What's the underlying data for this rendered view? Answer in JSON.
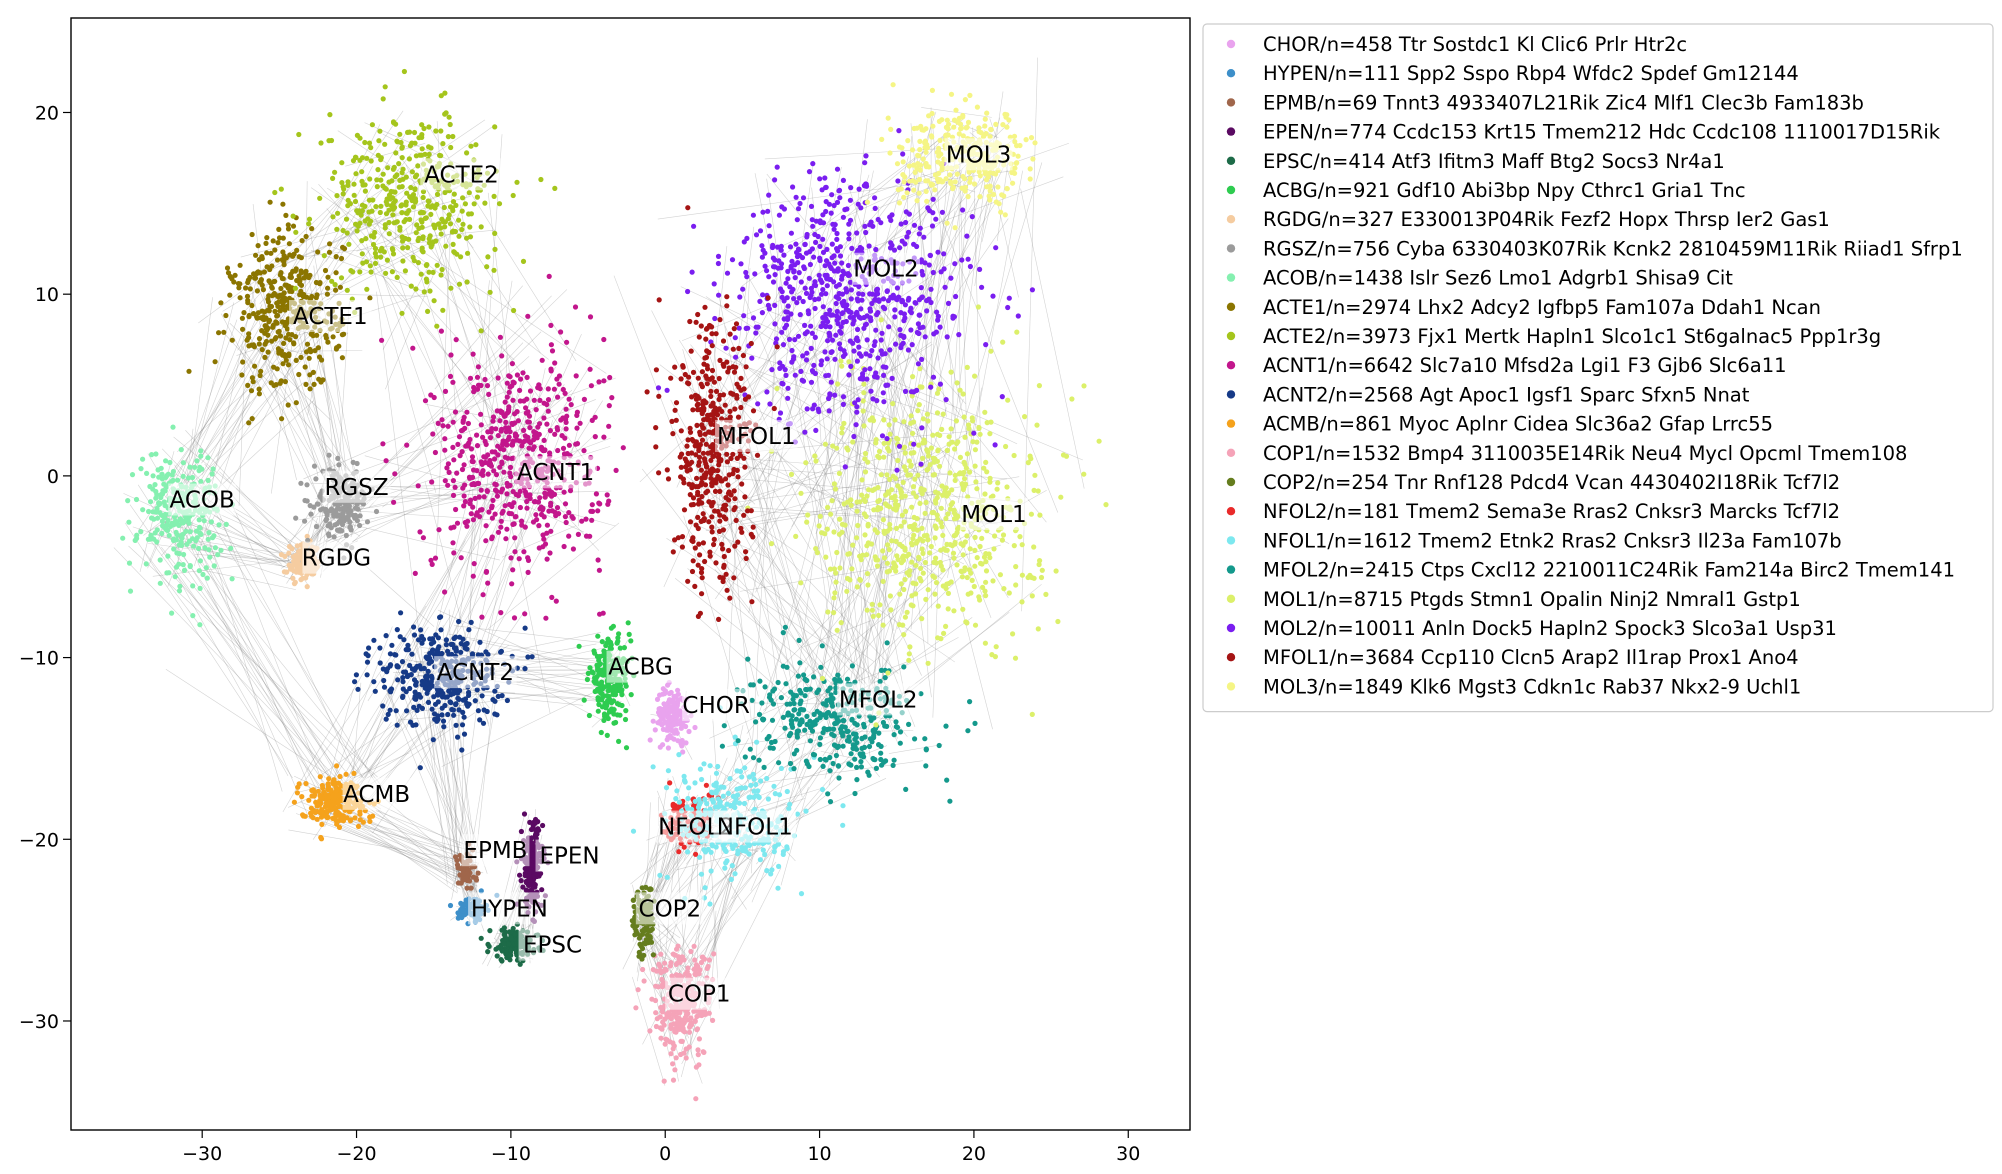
{
  "chart_data": {
    "type": "scatter",
    "title": "",
    "xlabel": "",
    "ylabel": "",
    "xlim": [
      -38.5,
      34
    ],
    "ylim": [
      -36,
      25.2
    ],
    "xticks": [
      -30,
      -20,
      -10,
      0,
      10,
      20,
      30
    ],
    "yticks": [
      20,
      10,
      0,
      -10,
      -20,
      -30
    ],
    "xtick_labels": [
      "−30",
      "−20",
      "−10",
      "0",
      "10",
      "20",
      "30"
    ],
    "ytick_labels": [
      "20",
      "10",
      "0",
      "−10",
      "−20",
      "−30"
    ],
    "grid": false,
    "legend_position": "outside-right-top",
    "edge_color": "#808080",
    "clusters": [
      {
        "name": "CHOR",
        "legend": "CHOR/n=458 Ttr Sostdc1 Kl Clic6 Prlr Htr2c",
        "color": "#e9a3ee",
        "n": 458,
        "center": [
          0.5,
          -13.2
        ],
        "spread": [
          1.0,
          1.4
        ],
        "label_pos": [
          3.3,
          -12.6
        ]
      },
      {
        "name": "HYPEN",
        "legend": "HYPEN/n=111 Spp2 Sspo Rbp4 Wfdc2 Spdef Gm12144",
        "color": "#3d8fc9",
        "n": 111,
        "center": [
          -12.5,
          -23.8
        ],
        "spread": [
          0.8,
          0.6
        ],
        "label_pos": [
          -10.1,
          -23.8
        ]
      },
      {
        "name": "EPMB",
        "legend": "EPMB/n=69 Tnnt3 4933407L21Rik Zic4 Mlf1 Clec3b Fam183b",
        "color": "#a0664b",
        "n": 69,
        "center": [
          -13,
          -21.8
        ],
        "spread": [
          0.7,
          1.0
        ],
        "label_pos": [
          -11,
          -20.6
        ]
      },
      {
        "name": "EPEN",
        "legend": "EPEN/n=774 Ccdc153 Krt15 Tmem212 Hdc Ccdc108 1110017D15Rik",
        "color": "#5a0a62",
        "n": 774,
        "center": [
          -8.6,
          -21.5
        ],
        "spread": [
          0.6,
          2.2
        ],
        "label_pos": [
          -6.2,
          -20.9
        ]
      },
      {
        "name": "EPSC",
        "legend": "EPSC/n=414 Atf3 Ifitm3 Maff Btg2 Socs3 Nr4a1",
        "color": "#1d6b48",
        "n": 414,
        "center": [
          -9.8,
          -25.8
        ],
        "spread": [
          1.4,
          0.8
        ],
        "label_pos": [
          -7.3,
          -25.8
        ]
      },
      {
        "name": "ACBG",
        "legend": "ACBG/n=921 Gdf10 Abi3bp Npy Cthrc1 Gria1 Tnc",
        "color": "#2ecc50",
        "n": 921,
        "center": [
          -3.6,
          -11.2
        ],
        "spread": [
          1.2,
          2.0
        ],
        "label_pos": [
          -1.6,
          -10.5
        ]
      },
      {
        "name": "RGDG",
        "legend": "RGDG/n=327 E330013P04Rik Fezf2 Hopx Thrsp Ier2 Gas1",
        "color": "#f5cca0",
        "n": 327,
        "center": [
          -23.4,
          -4.8
        ],
        "spread": [
          1.0,
          0.9
        ],
        "label_pos": [
          -21.3,
          -4.5
        ]
      },
      {
        "name": "RGSZ",
        "legend": "RGSZ/n=756 Cyba 6330403K07Rik Kcnk2 2810459M11Rik Riiad1 Sfrp1",
        "color": "#9b9b9b",
        "n": 756,
        "center": [
          -21,
          -1.5
        ],
        "spread": [
          1.6,
          1.6
        ],
        "label_pos": [
          -20,
          -0.6
        ]
      },
      {
        "name": "ACOB",
        "legend": "ACOB/n=1438 Islr Sez6 Lmo1 Adgrb1 Shisa9 Cit",
        "color": "#85f0b0",
        "n": 1438,
        "center": [
          -31.5,
          -2.0
        ],
        "spread": [
          2.4,
          3.2
        ],
        "label_pos": [
          -30,
          -1.3
        ]
      },
      {
        "name": "ACTE1",
        "legend": "ACTE1/n=2974 Lhx2 Adcy2 Igfbp5 Fam107a Ddah1 Ncan",
        "color": "#8b7500",
        "n": 2974,
        "center": [
          -24.5,
          9.0
        ],
        "spread": [
          3.2,
          4.0
        ],
        "label_pos": [
          -21.7,
          8.8
        ]
      },
      {
        "name": "ACTE2",
        "legend": "ACTE2/n=3973 Fjx1 Mertk Hapln1 Slco1c1 St6galnac5 Ppp1r3g",
        "color": "#a5c51c",
        "n": 3973,
        "center": [
          -16.5,
          15.0
        ],
        "spread": [
          5.2,
          4.3
        ],
        "label_pos": [
          -13.2,
          16.6
        ]
      },
      {
        "name": "ACNT1",
        "legend": "ACNT1/n=6642 Slc7a10 Mfsd2a Lgi1 F3 Gjb6 Slc6a11",
        "color": "#c2168c",
        "n": 6642,
        "center": [
          -9.5,
          0.8
        ],
        "spread": [
          5.0,
          5.6
        ],
        "label_pos": [
          -7.1,
          0.2
        ]
      },
      {
        "name": "ACNT2",
        "legend": "ACNT2/n=2568 Agt Apoc1 Igsf1 Sparc Sfxn5 Nnat",
        "color": "#163a87",
        "n": 2568,
        "center": [
          -14.5,
          -11.0
        ],
        "spread": [
          3.6,
          2.6
        ],
        "label_pos": [
          -12.3,
          -10.8
        ]
      },
      {
        "name": "ACMB",
        "legend": "ACMB/n=861 Myoc Aplnr Cidea Slc36a2 Gfap Lrrc55",
        "color": "#f5a21c",
        "n": 861,
        "center": [
          -21.5,
          -17.9
        ],
        "spread": [
          2.0,
          1.2
        ],
        "label_pos": [
          -18.7,
          -17.5
        ]
      },
      {
        "name": "COP1",
        "legend": "COP1/n=1532 Bmp4 3110035E14Rik Neu4 Mycl Opcml Tmem108",
        "color": "#f5a3b8",
        "n": 1532,
        "center": [
          1.0,
          -29.0
        ],
        "spread": [
          1.8,
          2.8
        ],
        "label_pos": [
          2.2,
          -28.5
        ]
      },
      {
        "name": "COP2",
        "legend": "COP2/n=254 Tnr Rnf128 Pdcd4 Vcan 4430402I18Rik Tcf7l2",
        "color": "#657d1e",
        "n": 254,
        "center": [
          -1.4,
          -24.5
        ],
        "spread": [
          0.6,
          1.8
        ],
        "label_pos": [
          0.3,
          -23.8
        ]
      },
      {
        "name": "NFOL2",
        "legend": "NFOL2/n=181 Tmem2 Sema3e Rras2 Cnksr3 Marcks Tcf7l2",
        "color": "#e92a2a",
        "n": 181,
        "center": [
          1.5,
          -19.0
        ],
        "spread": [
          1.5,
          1.5
        ],
        "label_pos": [
          2.0,
          -19.3
        ]
      },
      {
        "name": "NFOL1",
        "legend": "NFOL1/n=1612 Tmem2 Etnk2 Rras2 Cnksr3 Il23a Fam107b",
        "color": "#7de8ef",
        "n": 1612,
        "center": [
          4.5,
          -19.0
        ],
        "spread": [
          4.0,
          3.0
        ],
        "label_pos": [
          5.8,
          -19.3
        ]
      },
      {
        "name": "MFOL2",
        "legend": "MFOL2/n=2415 Ctps Cxcl12 2210011C24Rik Fam214a Birc2 Tmem141",
        "color": "#14998c",
        "n": 2415,
        "center": [
          11.0,
          -13.5
        ],
        "spread": [
          5.0,
          2.8
        ],
        "label_pos": [
          13.8,
          -12.3
        ]
      },
      {
        "name": "MOL1",
        "legend": "MOL1/n=8715 Ptgds Stmn1 Opalin Ninj2 Nmral1 Gstp1",
        "color": "#dcf06a",
        "n": 8715,
        "center": [
          17.0,
          -2.0
        ],
        "spread": [
          6.5,
          6.5
        ],
        "label_pos": [
          21.3,
          -2.1
        ]
      },
      {
        "name": "MOL2",
        "legend": "MOL2/n=10011 Anln Dock5 Hapln2 Spock3 Slco3a1 Usp31",
        "color": "#7a1ef0",
        "n": 10011,
        "center": [
          12.0,
          10.0
        ],
        "spread": [
          7.0,
          6.0
        ],
        "label_pos": [
          14.3,
          11.4
        ]
      },
      {
        "name": "MFOL1",
        "legend": "MFOL1/n=3684 Ccp110 Clcn5 Arap2 Il1rap Prox1 Ano4",
        "color": "#a51414",
        "n": 3684,
        "center": [
          3.0,
          1.0
        ],
        "spread": [
          2.4,
          6.5
        ],
        "label_pos": [
          5.9,
          2.2
        ]
      },
      {
        "name": "MOL3",
        "legend": "MOL3/n=1849 Klk6 Mgst3 Cdkn1c Rab37 Nkx2-9 Uchl1",
        "color": "#f5f585",
        "n": 1849,
        "center": [
          19.5,
          17.5
        ],
        "spread": [
          4.0,
          2.3
        ],
        "label_pos": [
          20.3,
          17.7
        ]
      }
    ]
  }
}
